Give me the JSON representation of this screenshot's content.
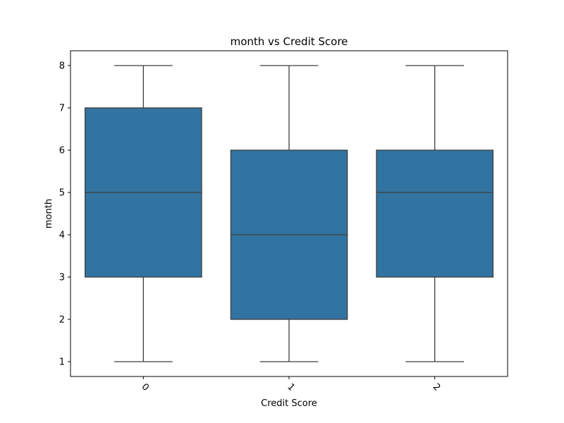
{
  "chart_data": {
    "type": "box",
    "title": "month vs Credit Score",
    "xlabel": "Credit Score",
    "ylabel": "month",
    "categories": [
      "0",
      "1",
      "2"
    ],
    "boxes": [
      {
        "category": "0",
        "whisker_low": 1,
        "q1": 3,
        "median": 5,
        "q3": 7,
        "whisker_high": 8
      },
      {
        "category": "1",
        "whisker_low": 1,
        "q1": 2,
        "median": 4,
        "q3": 6,
        "whisker_high": 8
      },
      {
        "category": "2",
        "whisker_low": 1,
        "q1": 3,
        "median": 5,
        "q3": 6,
        "whisker_high": 8
      }
    ],
    "yticks": [
      1,
      2,
      3,
      4,
      5,
      6,
      7,
      8
    ],
    "ylim": [
      0.65,
      8.35
    ],
    "x_tick_rotation_deg": 45,
    "grid": false,
    "box_color": "#3274a1",
    "line_color": "#3f3f3f"
  }
}
